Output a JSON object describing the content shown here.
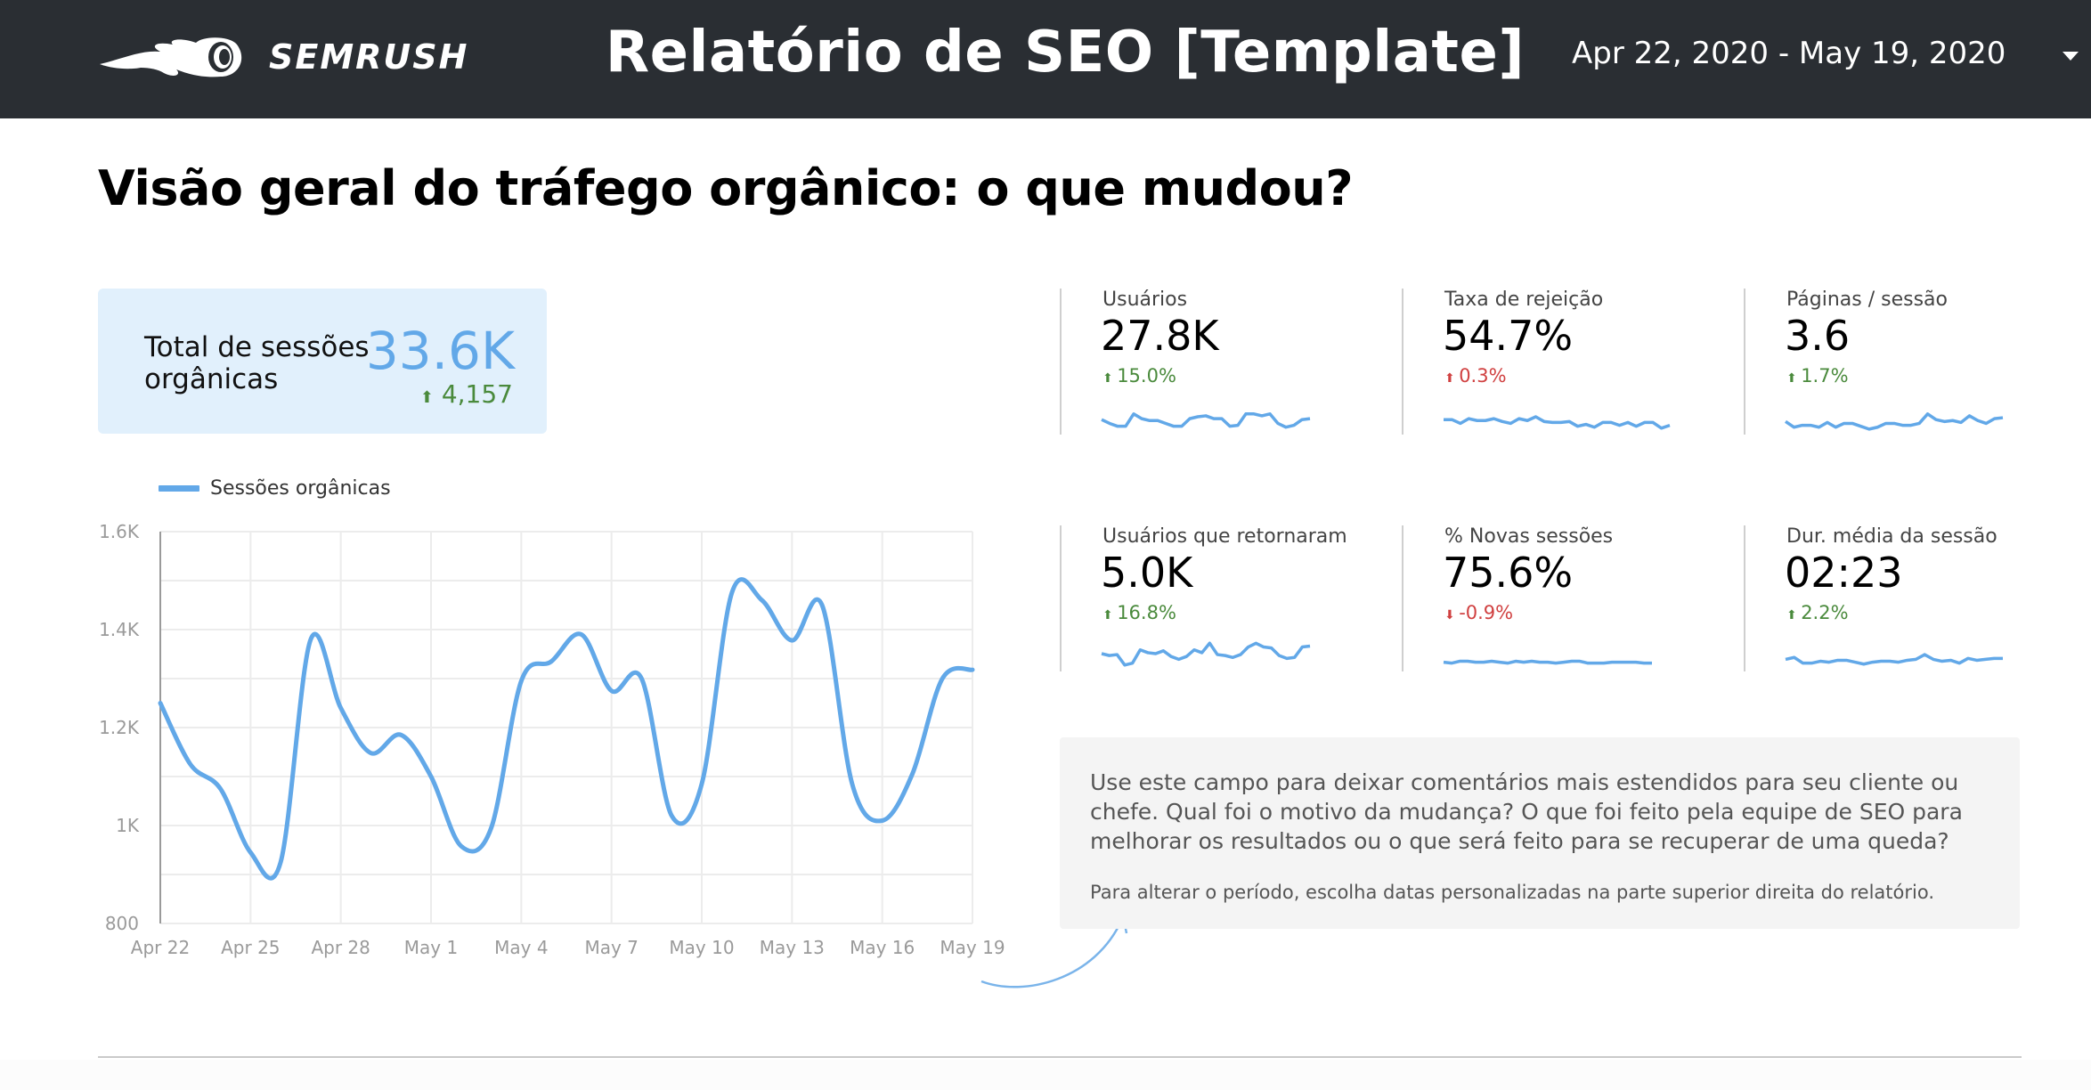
{
  "header": {
    "brand": "SEMRUSH",
    "title": "Relatório de SEO [Template]",
    "date_range": "Apr 22, 2020 - May 19, 2020",
    "background": "#2a2e33"
  },
  "section": {
    "title": "Visão geral do tráfego orgânico: o que mudou?"
  },
  "total_sessions": {
    "label": "Total de sessões orgânicas",
    "value": "33.6K",
    "delta": "4,157",
    "delta_direction": "up",
    "value_color": "#62a8e8",
    "background": "#e1f0fc"
  },
  "kpis": [
    {
      "label": "Usuários",
      "value": "27.8K",
      "delta": "15.0%",
      "direction": "up",
      "sentiment": "good",
      "spark": [
        12,
        8,
        5,
        5,
        18,
        13,
        11,
        11,
        8,
        5,
        5,
        13,
        15,
        16,
        13,
        13,
        5,
        6,
        18,
        18,
        16,
        18,
        8,
        4,
        6,
        12,
        13
      ]
    },
    {
      "label": "Taxa de rejeição",
      "value": "54.7%",
      "delta": "0.3%",
      "direction": "up",
      "sentiment": "bad",
      "spark": [
        12,
        12,
        8,
        13,
        11,
        11,
        13,
        10,
        8,
        13,
        11,
        15,
        10,
        9,
        9,
        10,
        5,
        7,
        4,
        9,
        9,
        6,
        9,
        5,
        9,
        9,
        3,
        6
      ]
    },
    {
      "label": "Páginas / sessão",
      "value": "3.6",
      "delta": "1.7%",
      "direction": "up",
      "sentiment": "good",
      "spark": [
        10,
        4,
        6,
        6,
        4,
        9,
        4,
        8,
        8,
        5,
        2,
        4,
        8,
        8,
        6,
        6,
        8,
        18,
        12,
        10,
        11,
        9,
        16,
        11,
        8,
        13,
        14
      ]
    },
    {
      "label": "Usuários que retornaram",
      "value": "5.0K",
      "delta": "16.8%",
      "direction": "up",
      "sentiment": "good",
      "spark": [
        15,
        13,
        14,
        3,
        5,
        19,
        16,
        15,
        18,
        12,
        9,
        12,
        19,
        16,
        26,
        14,
        13,
        11,
        14,
        22,
        26,
        22,
        21,
        13,
        10,
        11,
        22,
        23
      ]
    },
    {
      "label": "% Novas sessões",
      "value": "75.6%",
      "delta": "-0.9%",
      "direction": "down",
      "sentiment": "bad",
      "spark": [
        6,
        5,
        7,
        7,
        6,
        6,
        7,
        6,
        5,
        7,
        6,
        7,
        6,
        6,
        5,
        6,
        7,
        7,
        5,
        5,
        5,
        6,
        6,
        6,
        6,
        5,
        5
      ]
    },
    {
      "label": "Dur. média da sessão",
      "value": "02:23",
      "delta": "2.2%",
      "direction": "up",
      "sentiment": "good",
      "spark": [
        9,
        11,
        5,
        5,
        7,
        6,
        8,
        8,
        6,
        4,
        6,
        7,
        7,
        6,
        8,
        9,
        14,
        9,
        7,
        8,
        5,
        10,
        8,
        9,
        10,
        10
      ]
    }
  ],
  "comment": {
    "main": "Use este campo para deixar comentários mais estendidos para seu cliente ou chefe. Qual foi o motivo da mudança? O que foi feito pela equipe de SEO para melhorar os resultados ou o que será feito para se recuperar de uma queda?",
    "hint": "Para alterar o período, escolha datas personalizadas na parte superior direita do relatório."
  },
  "colors": {
    "accent": "#62a8e8",
    "positive": "#4a8a3c",
    "negative": "#d04040",
    "grid": "#ececec"
  },
  "chart_data": {
    "type": "line",
    "title": "",
    "legend": [
      "Sessões orgânicas"
    ],
    "legend_position": "top-left",
    "xlabel": "",
    "ylabel": "",
    "ylim": [
      800,
      1600
    ],
    "yticks": [
      "800",
      "1K",
      "1.2K",
      "1.4K",
      "1.6K"
    ],
    "grid": true,
    "x_tick_labels": [
      "Apr 22",
      "Apr 25",
      "Apr 28",
      "May 1",
      "May 4",
      "May 7",
      "May 10",
      "May 13",
      "May 16",
      "May 19"
    ],
    "x": [
      "Apr 22",
      "Apr 23",
      "Apr 24",
      "Apr 25",
      "Apr 26",
      "Apr 27",
      "Apr 28",
      "Apr 29",
      "Apr 30",
      "May 1",
      "May 2",
      "May 3",
      "May 4",
      "May 5",
      "May 6",
      "May 7",
      "May 8",
      "May 9",
      "May 10",
      "May 11",
      "May 12",
      "May 13",
      "May 14",
      "May 15",
      "May 16",
      "May 17",
      "May 18",
      "May 19"
    ],
    "series": [
      {
        "name": "Sessões orgânicas",
        "values": [
          1250,
          1125,
          1075,
          945,
          925,
          1380,
          1240,
          1148,
          1185,
          1100,
          958,
          995,
          1295,
          1335,
          1390,
          1275,
          1300,
          1020,
          1085,
          1475,
          1460,
          1378,
          1450,
          1085,
          1010,
          1105,
          1300,
          1318
        ]
      }
    ]
  }
}
